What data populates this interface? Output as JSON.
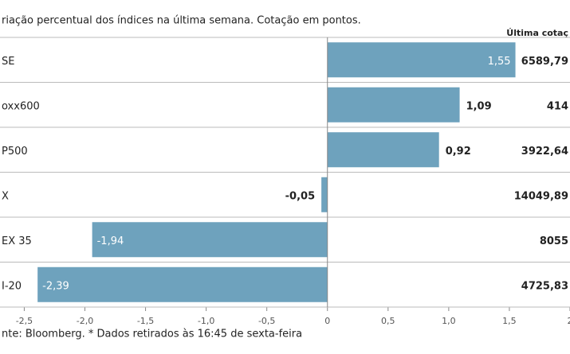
{
  "chart_data": {
    "type": "bar",
    "orientation": "horizontal",
    "title": "riação percentual dos índices na última semana. Cotação em pontos.",
    "extra_column_header": "Última cotaç",
    "categories": [
      "SE",
      "oxx600",
      "P500",
      "X",
      "EX 35",
      "I-20"
    ],
    "values": [
      1.55,
      1.09,
      0.92,
      -0.05,
      -1.94,
      -2.39
    ],
    "value_labels": [
      "1,55",
      "1,09",
      "0,92",
      "-0,05",
      "-1,94",
      "-2,39"
    ],
    "extra_column": [
      "6589,79",
      "414",
      "3922,64",
      "14049,89",
      "8055",
      "4725,83"
    ],
    "color": "#6ea2bd",
    "xlim": [
      -2.7,
      2.0
    ],
    "xticks": [
      {
        "value": -2.5,
        "label": "-2,5"
      },
      {
        "value": -2.0,
        "label": "-2,0"
      },
      {
        "value": -1.5,
        "label": "-1,5"
      },
      {
        "value": -1.0,
        "label": "-1,0"
      },
      {
        "value": -0.5,
        "label": "-0,5"
      },
      0,
      {
        "value": 0.5,
        "label": "0,5"
      },
      {
        "value": 1.0,
        "label": "1,0"
      },
      {
        "value": 1.5,
        "label": "1,5"
      },
      2
    ],
    "footnote": "nte: Bloomberg.  * Dados retirados às 16:45 de sexta-feira"
  }
}
